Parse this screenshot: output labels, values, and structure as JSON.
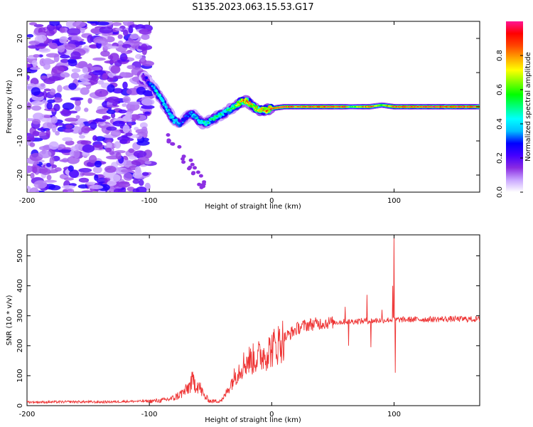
{
  "figure_title": "S135.2023.063.15.53.G17",
  "chart_data": [
    {
      "type": "heatmap",
      "title": "S135.2023.063.15.53.G17",
      "xlabel": "Height of straight line (km)",
      "ylabel": "Frequency (Hz)",
      "xlim": [
        -200,
        170
      ],
      "ylim": [
        -25,
        25
      ],
      "xticks": [
        -200,
        -100,
        0,
        100
      ],
      "yticks": [
        -20,
        -10,
        0,
        10,
        20
      ],
      "ridge": {
        "x": [
          -105,
          -100,
          -95,
          -90,
          -85,
          -80,
          -75,
          -70,
          -65,
          -60,
          -55,
          -50,
          -45,
          -40,
          -35,
          -30,
          -25,
          -20,
          -15,
          -10,
          -5,
          0,
          10,
          20,
          40,
          60,
          65,
          80,
          90,
          100,
          170
        ],
        "freq": [
          9,
          7,
          5,
          2,
          -1,
          -4,
          -5,
          -3,
          -2,
          -4,
          -5,
          -4,
          -3,
          -2,
          -1,
          0,
          1.5,
          1.5,
          0,
          -1,
          -1,
          -0.5,
          0,
          0,
          0,
          0,
          0,
          0,
          0.5,
          0,
          0
        ],
        "amplitude": [
          0.2,
          0.3,
          0.45,
          0.5,
          0.4,
          0.45,
          0.35,
          0.3,
          0.4,
          0.45,
          0.5,
          0.5,
          0.55,
          0.45,
          0.55,
          0.6,
          0.8,
          0.85,
          0.7,
          0.8,
          0.85,
          0.9,
          0.95,
          0.9,
          0.95,
          0.95,
          0.6,
          0.95,
          0.65,
          0.95,
          0.95
        ]
      },
      "noise_region_x": [
        -200,
        -105
      ]
    },
    {
      "type": "line",
      "xlabel": "Height of straight line (km)",
      "ylabel": "SNR (10 * v/v)",
      "xlim": [
        -200,
        170
      ],
      "ylim": [
        0,
        570
      ],
      "xticks": [
        -200,
        -100,
        0,
        100
      ],
      "yticks": [
        0,
        100,
        200,
        300,
        400,
        500
      ],
      "series": [
        {
          "name": "SNR",
          "color": "#ee3333",
          "x": [
            -200,
            -180,
            -160,
            -140,
            -120,
            -100,
            -90,
            -80,
            -70,
            -65,
            -60,
            -55,
            -50,
            -45,
            -40,
            -35,
            -30,
            -25,
            -20,
            -15,
            -10,
            -5,
            0,
            5,
            10,
            15,
            20,
            25,
            30,
            40,
            50,
            60,
            70,
            80,
            90,
            100,
            110,
            120,
            130,
            140,
            150,
            160,
            170
          ],
          "y": [
            12,
            12,
            13,
            12,
            14,
            15,
            17,
            25,
            50,
            80,
            70,
            30,
            15,
            15,
            20,
            60,
            100,
            130,
            150,
            155,
            165,
            175,
            190,
            205,
            225,
            240,
            255,
            265,
            270,
            275,
            278,
            280,
            282,
            283,
            285,
            287,
            287,
            288,
            288,
            289,
            289,
            289,
            288
          ]
        }
      ],
      "spikes": [
        {
          "x": 60,
          "y": 330
        },
        {
          "x": 63,
          "y": 200
        },
        {
          "x": 78,
          "y": 370
        },
        {
          "x": 81,
          "y": 195
        },
        {
          "x": 90,
          "y": 320
        },
        {
          "x": 99,
          "y": 400
        },
        {
          "x": 100,
          "y": 565
        },
        {
          "x": 101,
          "y": 110
        }
      ]
    }
  ],
  "colorbar": {
    "label": "Normalized spectral amplitude",
    "ticks": [
      "0.0",
      "0.2",
      "0.4",
      "0.6",
      "0.8"
    ],
    "range": [
      0,
      1
    ],
    "stops": [
      "#ffffff",
      "#c9a6ff",
      "#8a2be2",
      "#4400ff",
      "#0000ff",
      "#00bfff",
      "#00ffff",
      "#00ff7f",
      "#00ff00",
      "#7fff00",
      "#ffff00",
      "#ffa500",
      "#ff4500",
      "#ff0000",
      "#ff1493"
    ]
  }
}
